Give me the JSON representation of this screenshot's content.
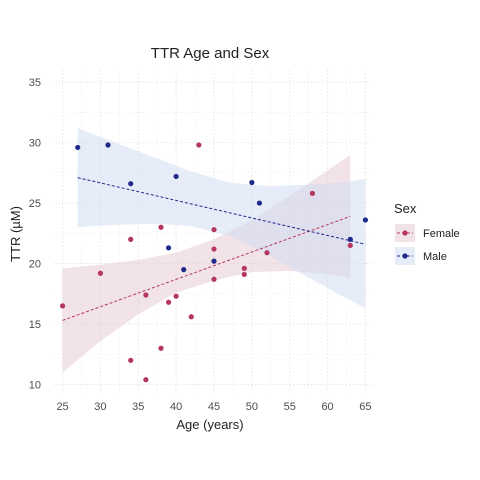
{
  "chart_data": {
    "type": "scatter",
    "title": "TTR Age and Sex",
    "xlabel": "Age (years)",
    "ylabel": "TTR (µM)",
    "xlim": [
      24,
      66
    ],
    "ylim": [
      9.3,
      36
    ],
    "xticks": [
      25,
      30,
      35,
      40,
      45,
      50,
      55,
      60,
      65
    ],
    "yticks": [
      10,
      15,
      20,
      25,
      30,
      35
    ],
    "grid": true,
    "legend": {
      "title": "Sex",
      "placement": "right",
      "entries": [
        "Female",
        "Male"
      ]
    },
    "series": [
      {
        "name": "Female",
        "color": "#b5365f",
        "band_color": "#e6c7d3",
        "trend": {
          "x": [
            25,
            63
          ],
          "y": [
            15.3,
            23.9
          ]
        },
        "band": {
          "x": [
            25,
            30,
            35,
            40,
            45,
            50,
            55,
            60,
            63
          ],
          "lower": [
            11.0,
            13.6,
            15.8,
            17.6,
            18.6,
            19.3,
            19.4,
            19.1,
            18.8
          ],
          "upper": [
            19.6,
            19.9,
            20.3,
            20.9,
            22.0,
            23.6,
            25.6,
            27.7,
            29.0
          ]
        },
        "points": [
          {
            "x": 25,
            "y": 16.5
          },
          {
            "x": 30,
            "y": 19.2
          },
          {
            "x": 34,
            "y": 22.0
          },
          {
            "x": 34,
            "y": 12.0
          },
          {
            "x": 36,
            "y": 17.4
          },
          {
            "x": 36,
            "y": 10.4
          },
          {
            "x": 38,
            "y": 23.0
          },
          {
            "x": 38,
            "y": 13.0
          },
          {
            "x": 39,
            "y": 16.8
          },
          {
            "x": 40,
            "y": 17.3
          },
          {
            "x": 42,
            "y": 15.6
          },
          {
            "x": 43,
            "y": 29.8
          },
          {
            "x": 45,
            "y": 22.8
          },
          {
            "x": 45,
            "y": 21.2
          },
          {
            "x": 45,
            "y": 18.7
          },
          {
            "x": 49,
            "y": 19.6
          },
          {
            "x": 49,
            "y": 19.1
          },
          {
            "x": 52,
            "y": 20.9
          },
          {
            "x": 58,
            "y": 25.8
          },
          {
            "x": 63,
            "y": 21.5
          }
        ]
      },
      {
        "name": "Male",
        "color": "#1f2a8a",
        "band_color": "#cddcf2",
        "trend": {
          "x": [
            27,
            65
          ],
          "y": [
            27.1,
            21.6
          ]
        },
        "band": {
          "x": [
            27,
            32,
            37,
            42,
            47,
            52,
            57,
            62,
            65
          ],
          "lower": [
            23.0,
            23.2,
            23.3,
            23.1,
            22.3,
            20.8,
            19.0,
            17.3,
            16.3
          ],
          "upper": [
            31.2,
            30.0,
            28.8,
            27.6,
            26.7,
            26.4,
            26.5,
            26.7,
            27.0
          ]
        },
        "points": [
          {
            "x": 27,
            "y": 29.6
          },
          {
            "x": 31,
            "y": 29.8
          },
          {
            "x": 34,
            "y": 26.6
          },
          {
            "x": 39,
            "y": 21.3
          },
          {
            "x": 40,
            "y": 27.2
          },
          {
            "x": 41,
            "y": 19.5
          },
          {
            "x": 45,
            "y": 20.2
          },
          {
            "x": 50,
            "y": 26.7
          },
          {
            "x": 51,
            "y": 25.0
          },
          {
            "x": 63,
            "y": 22.0
          },
          {
            "x": 65,
            "y": 23.6
          }
        ]
      }
    ]
  }
}
